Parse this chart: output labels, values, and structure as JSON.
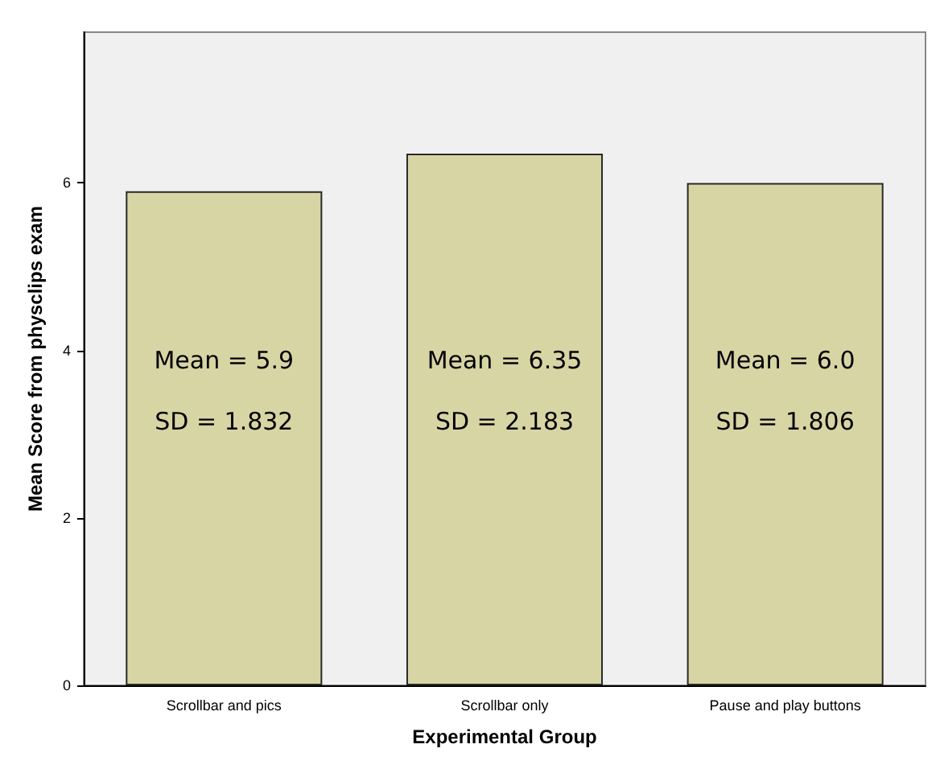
{
  "chart_data": {
    "type": "bar",
    "xlabel": "Experimental Group",
    "ylabel": "Mean Score from physclips exam",
    "categories": [
      "Scrollbar and pics",
      "Scrollbar only",
      "Pause and play buttons"
    ],
    "values": [
      5.9,
      6.35,
      6.0
    ],
    "color": "#d8d5a5",
    "ylim": [
      0,
      7.8
    ],
    "yticks": [
      0,
      2,
      4,
      6
    ],
    "grid": false,
    "annotations": [
      "Mean = 5.9",
      "SD = 1.832",
      "Mean = 6.35",
      "SD = 2.183",
      "Mean = 6.0",
      "SD = 1.806"
    ]
  }
}
